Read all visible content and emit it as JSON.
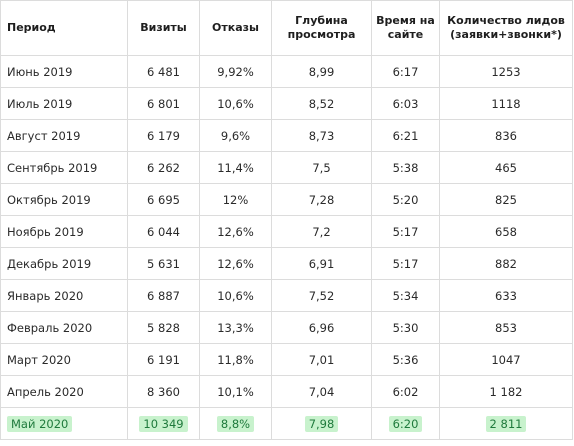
{
  "table": {
    "headers": {
      "period": "Период",
      "visits": "Визиты",
      "bounce": "Отказы",
      "depth": "Глубина просмотра",
      "time": "Время на сайте",
      "leads": "Количество лидов (заявки+звонки*)"
    },
    "rows": [
      {
        "period": "Июнь 2019",
        "visits": "6 481",
        "bounce": "9,92%",
        "depth": "8,99",
        "time": "6:17",
        "leads": "1253"
      },
      {
        "period": "Июль 2019",
        "visits": "6 801",
        "bounce": "10,6%",
        "depth": "8,52",
        "time": "6:03",
        "leads": "1118"
      },
      {
        "period": "Август 2019",
        "visits": "6 179",
        "bounce": "9,6%",
        "depth": "8,73",
        "time": "6:21",
        "leads": "836"
      },
      {
        "period": "Сентябрь 2019",
        "visits": "6 262",
        "bounce": "11,4%",
        "depth": "7,5",
        "time": "5:38",
        "leads": "465"
      },
      {
        "period": "Октябрь 2019",
        "visits": "6 695",
        "bounce": "12%",
        "depth": "7,28",
        "time": "5:20",
        "leads": "825"
      },
      {
        "period": "Ноябрь 2019",
        "visits": "6 044",
        "bounce": "12,6%",
        "depth": "7,2",
        "time": "5:17",
        "leads": "658"
      },
      {
        "period": "Декабрь 2019",
        "visits": "5 631",
        "bounce": "12,6%",
        "depth": "6,91",
        "time": "5:17",
        "leads": "882"
      },
      {
        "period": "Январь 2020",
        "visits": "6 887",
        "bounce": "10,6%",
        "depth": "7,52",
        "time": "5:34",
        "leads": "633"
      },
      {
        "period": "Февраль 2020",
        "visits": "5 828",
        "bounce": "13,3%",
        "depth": "6,96",
        "time": "5:30",
        "leads": "853"
      },
      {
        "period": "Март 2020",
        "visits": "6 191",
        "bounce": "11,8%",
        "depth": "7,01",
        "time": "5:36",
        "leads": "1047"
      },
      {
        "period": "Апрель 2020",
        "visits": "8 360",
        "bounce": "10,1%",
        "depth": "7,04",
        "time": "6:02",
        "leads": "1 182"
      }
    ],
    "highlight_row": {
      "period": "Май 2020",
      "visits": "10 349",
      "bounce": "8,8%",
      "depth": "7,98",
      "time": "6:20",
      "leads": "2 811"
    },
    "colors": {
      "highlight_background": "#c8f2cd",
      "highlight_text": "#1f7a3c",
      "border": "#dcdcdc"
    }
  }
}
